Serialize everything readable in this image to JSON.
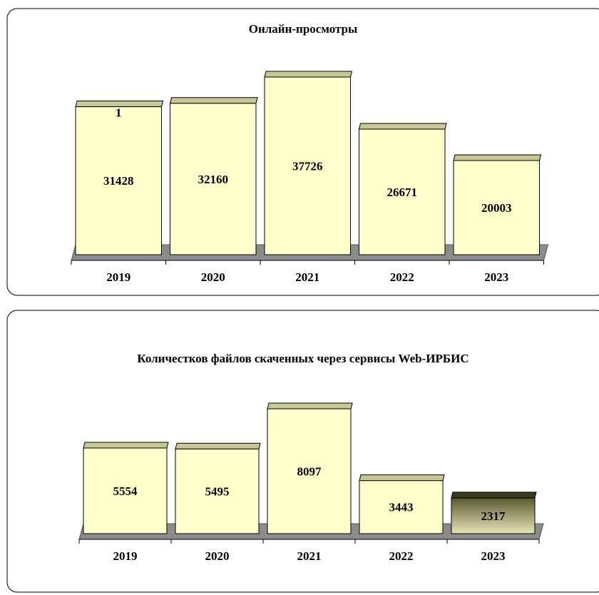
{
  "chart_data": [
    {
      "type": "bar",
      "title": "Онлайн-просмотры",
      "categories": [
        "2019",
        "2020",
        "2021",
        "2022",
        "2023"
      ],
      "series": [
        {
          "values": [
            31428,
            32160,
            37726,
            26671,
            20003
          ],
          "colors": [
            "#ffffcc",
            "#ffffcc",
            "#ffffcc",
            "#ffffcc",
            "#ffffcc"
          ]
        },
        {
          "values": [
            1,
            null,
            null,
            null,
            null
          ],
          "colors": [
            "#ffffcc",
            null,
            null,
            null,
            null
          ]
        }
      ]
    },
    {
      "type": "bar",
      "title": "Количестков файлов скаченных через сервисы Web-ИРБИС",
      "categories": [
        "2019",
        "2020",
        "2021",
        "2022",
        "2023"
      ],
      "series": [
        {
          "values": [
            5554,
            5495,
            8097,
            3443,
            2317
          ],
          "colors": [
            "#ffffcc",
            "#ffffcc",
            "#ffffcc",
            "#ffffcc",
            "#8c8a52"
          ]
        }
      ]
    }
  ]
}
